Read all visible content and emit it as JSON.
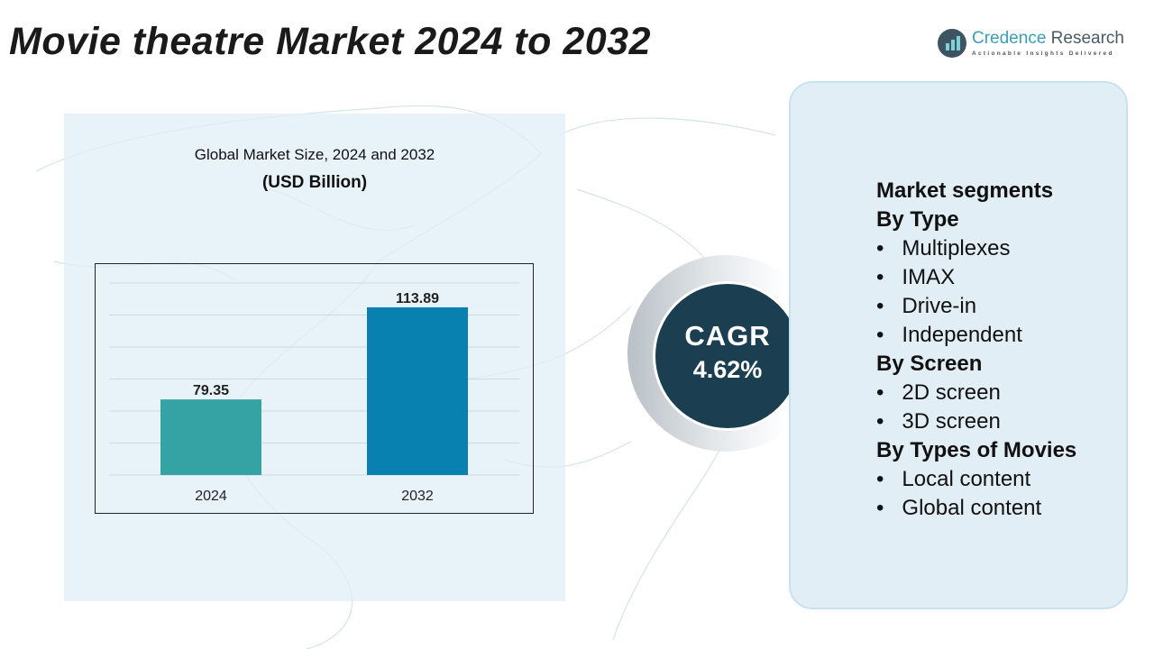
{
  "title": "Movie theatre Market 2024 to 2032",
  "logo": {
    "name_a": "Credence",
    "name_b": " Research",
    "tagline": "Actionable Insights Delivered"
  },
  "chart_data": {
    "type": "bar",
    "title": "Global Market Size, 2024 and 2032",
    "subtitle": "(USD Billion)",
    "categories": [
      "2024",
      "2032"
    ],
    "values": [
      79.35,
      113.89
    ],
    "value_labels": [
      "79.35",
      "113.89"
    ],
    "colors": [
      "#35a3a3",
      "#0881b1"
    ],
    "ylim": [
      51,
      123
    ],
    "grid": true,
    "y_axis_visible": false
  },
  "cagr": {
    "label": "CAGR",
    "value": "4.62%"
  },
  "segments": {
    "heading": "Market segments",
    "groups": [
      {
        "title": "By Type",
        "items": [
          "Multiplexes",
          "IMAX",
          "Drive-in",
          "Independent"
        ]
      },
      {
        "title": "By Screen",
        "items": [
          "2D screen",
          "3D screen"
        ]
      },
      {
        "title": "By Types of Movies",
        "items": [
          "Local content",
          "Global content"
        ]
      }
    ]
  },
  "colors": {
    "cagr_circle": "#1b3e50",
    "panel": "#e2eef6"
  }
}
